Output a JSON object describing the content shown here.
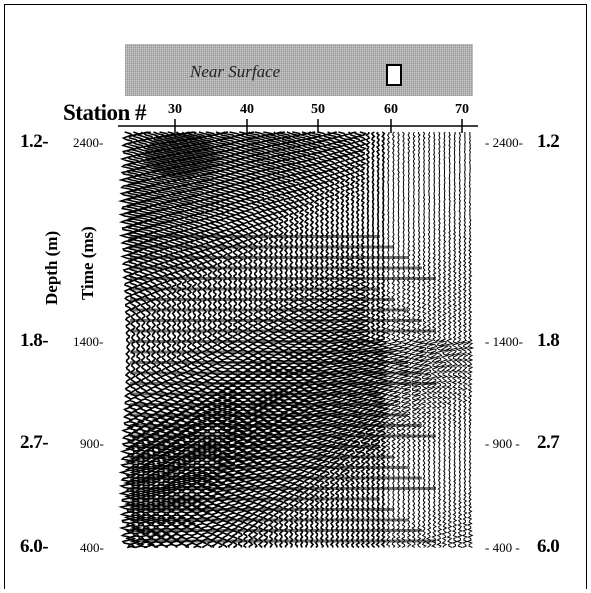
{
  "banner": {
    "label": "Near Surface"
  },
  "station_axis": {
    "title": "Station #",
    "ticks": [
      "30",
      "40",
      "50",
      "60",
      "70"
    ]
  },
  "left_axis": {
    "depth_title": "Depth (m)",
    "time_title": "Time (ms)",
    "rows": [
      {
        "depth": "1.2-",
        "time": "2400-"
      },
      {
        "depth": "1.8-",
        "time": "1400-"
      },
      {
        "depth": "2.7-",
        "time": "900-"
      },
      {
        "depth": "6.0-",
        "time": "400-"
      }
    ]
  },
  "right_axis": {
    "rows": [
      {
        "time": "- 2400-",
        "depth": "1.2"
      },
      {
        "time": "- 1400-",
        "depth": "1.8"
      },
      {
        "time": "- 900 -",
        "depth": "2.7"
      },
      {
        "time": "- 400 -",
        "depth": "6.0"
      }
    ]
  }
}
